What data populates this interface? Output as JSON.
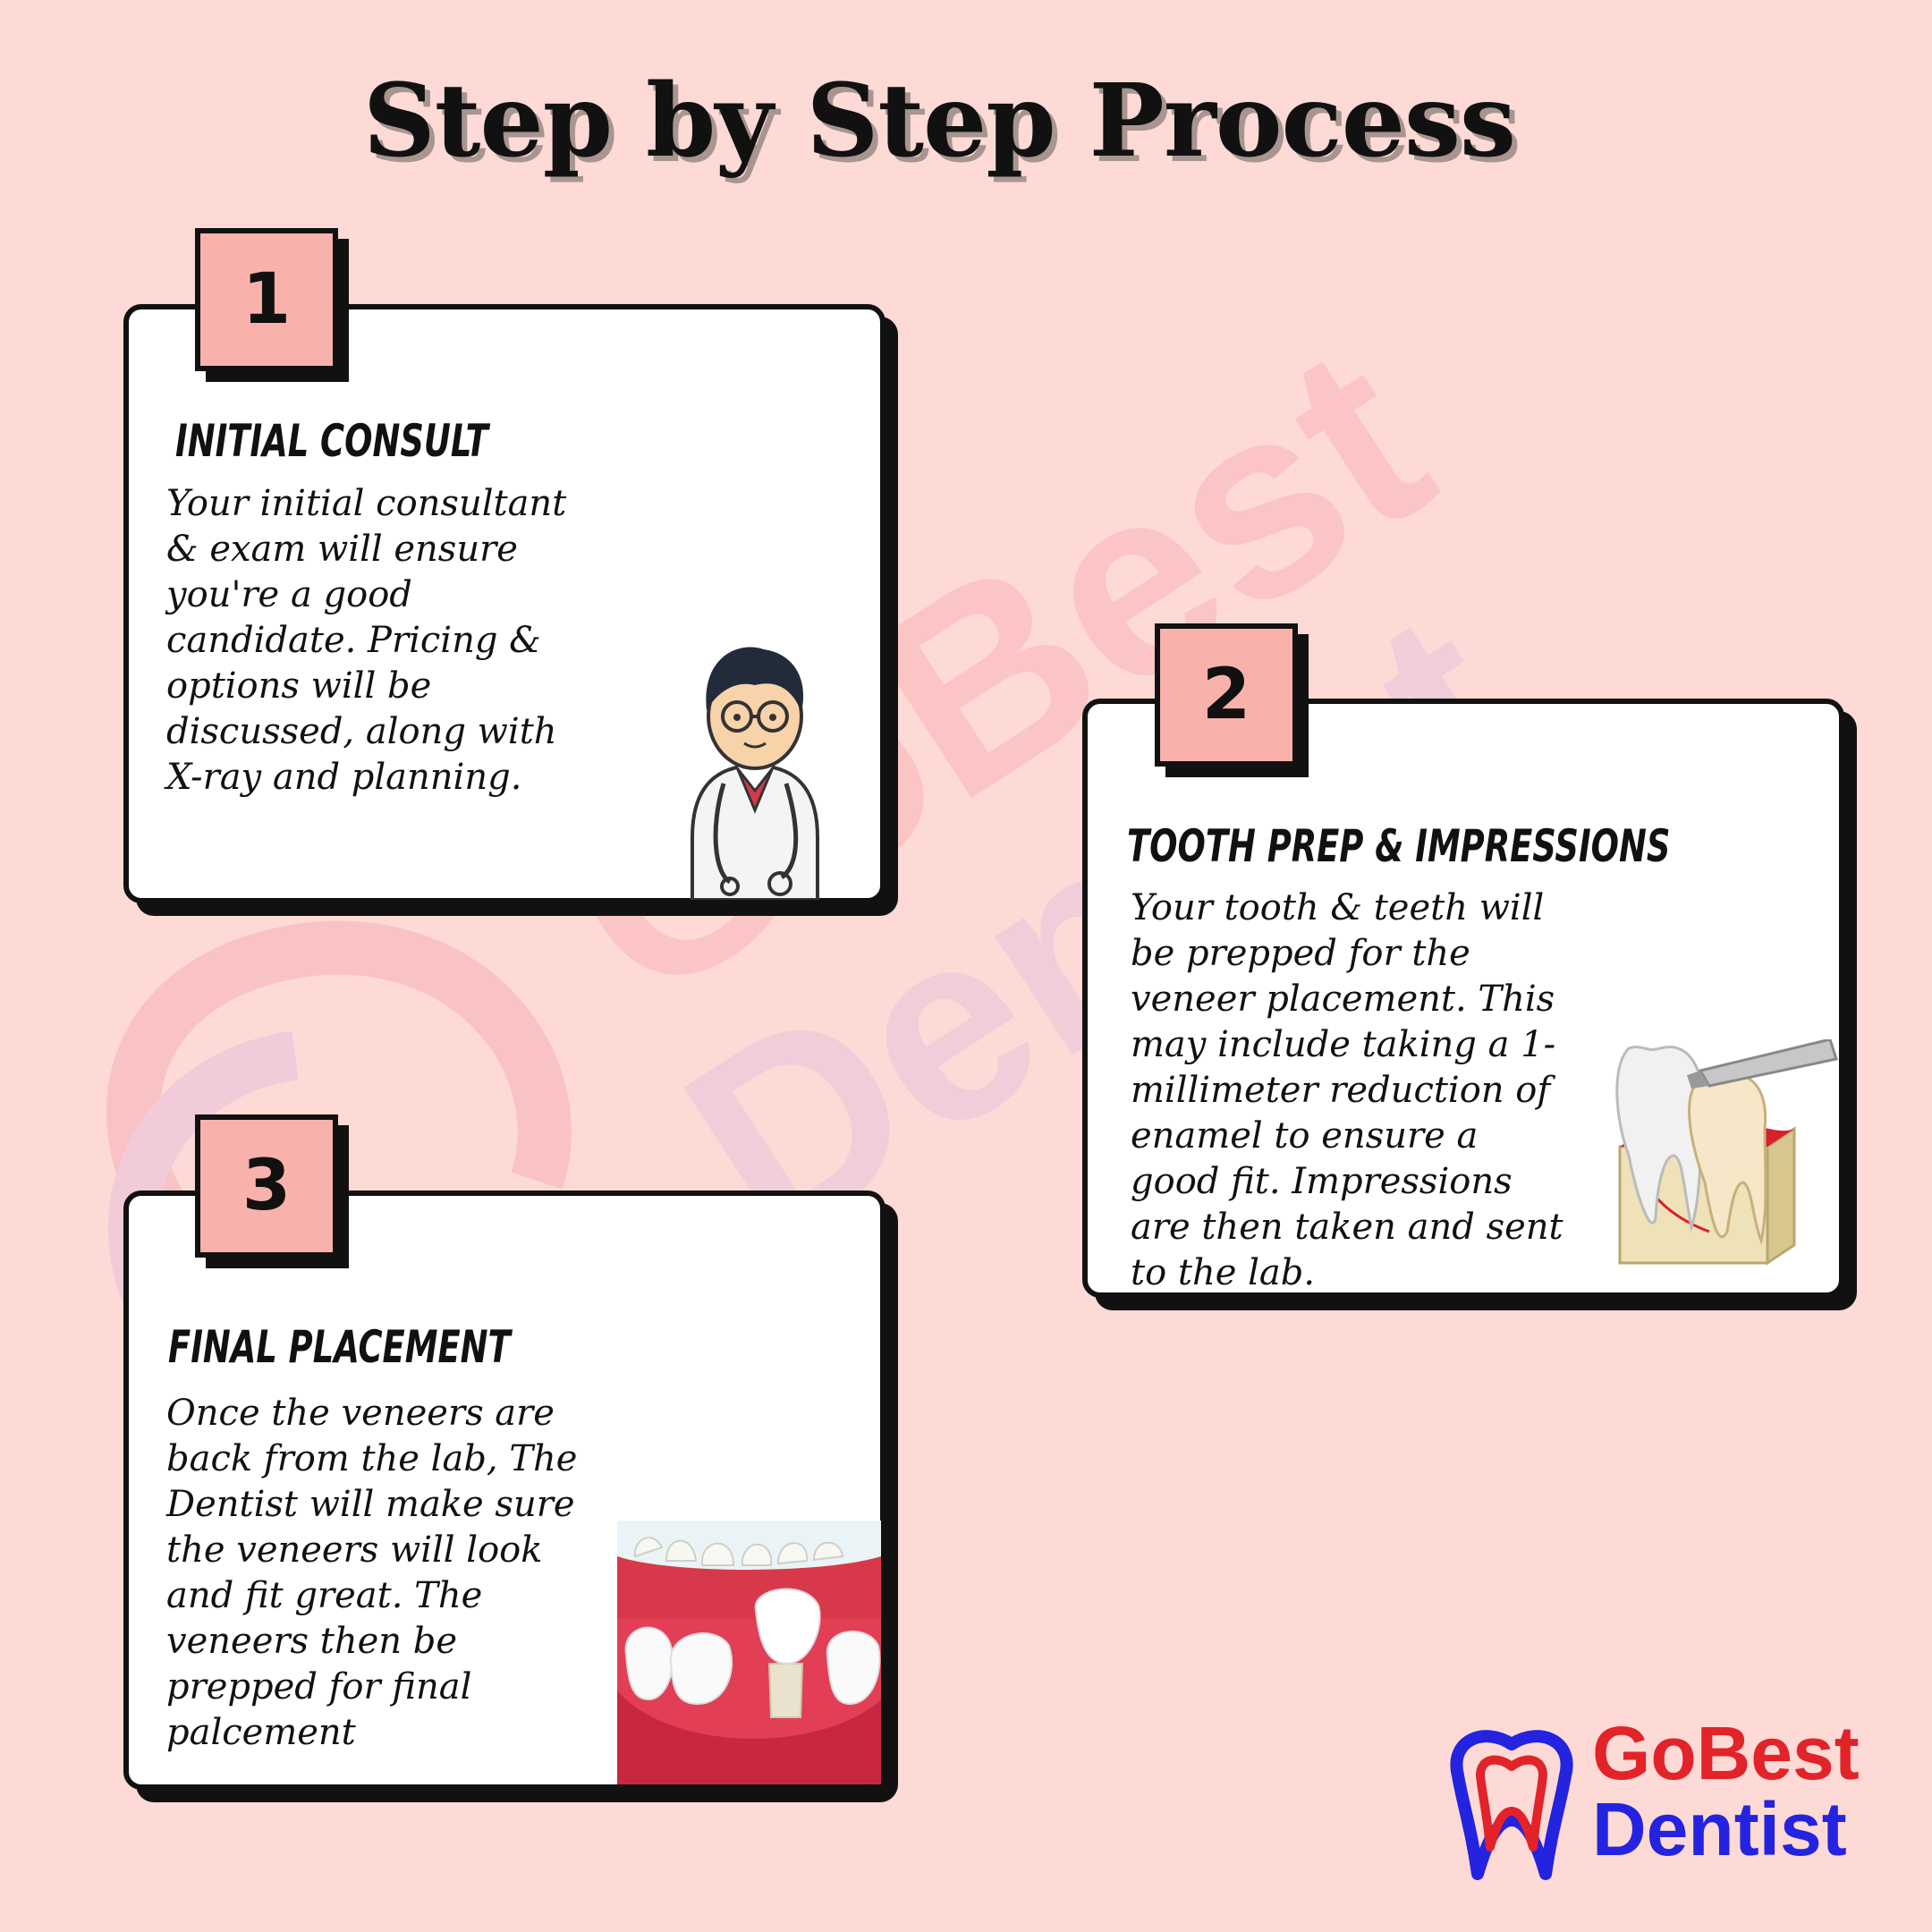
{
  "title": "Step by Step Process",
  "watermark": {
    "line1": "GoBest",
    "line2": "Dentist"
  },
  "steps": [
    {
      "number": "1",
      "heading": "INITIAL CONSULT",
      "body": "Your initial consultant & exam will ensure you're a good candidate. Pricing & options will be discussed, along with X-ray and planning.",
      "image": "dentist-cartoon"
    },
    {
      "number": "2",
      "heading": "TOOTH PREP & IMPRESSIONS",
      "body": "Your tooth & teeth will be prepped for the veneer placement. This may include taking a 1-millimeter reduction of enamel to ensure a good fit. Impressions are then taken and sent to the lab.",
      "image": "tooth-drill"
    },
    {
      "number": "3",
      "heading": "FINAL PLACEMENT",
      "body": "Once the veneers are back from the lab, The Dentist will make sure the veneers will look and fit great. The veneers then be prepped for final palcement",
      "image": "teeth-crown"
    }
  ],
  "logo": {
    "line1": "GoBest",
    "line2": "Dentist",
    "icon": "tooth-logo-icon"
  },
  "colors": {
    "background": "#fddad6",
    "badge": "#f8b2ab",
    "brand_red": "#e2232a",
    "brand_blue": "#2323e0"
  }
}
